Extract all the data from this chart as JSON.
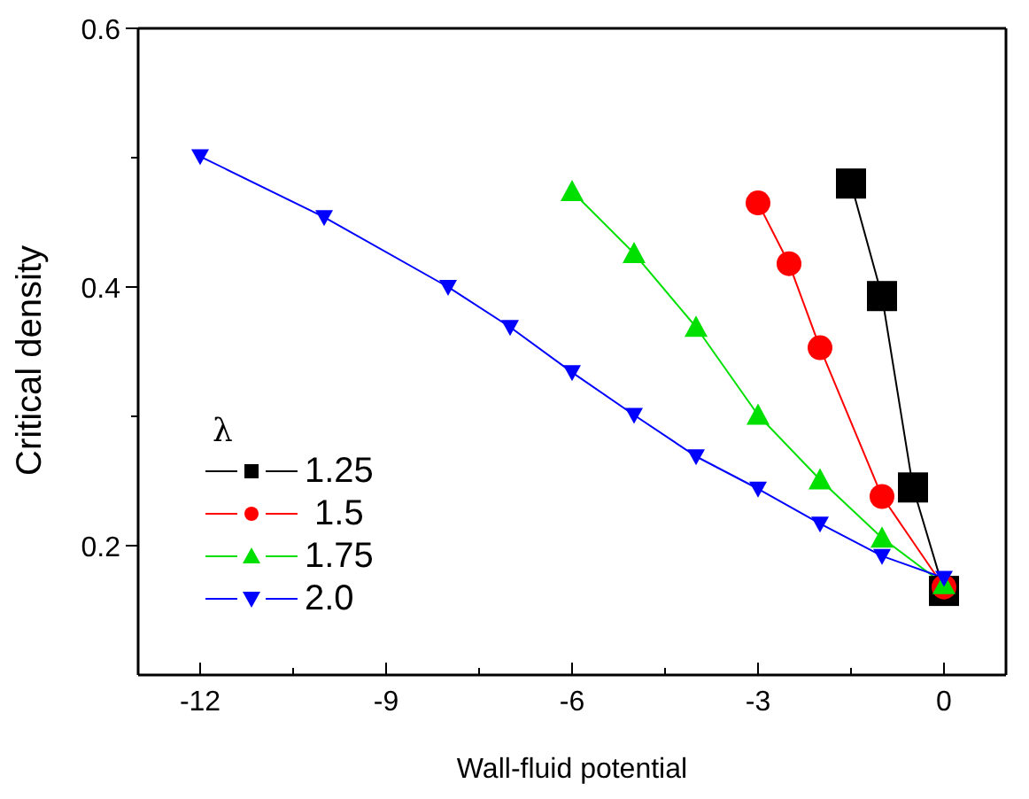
{
  "chart_data": {
    "type": "line",
    "xlabel": "Wall-fluid potential",
    "ylabel": "Critical density",
    "legend_title": "λ",
    "legend": "left",
    "xlim": [
      -13,
      1
    ],
    "xticks": [
      -12,
      {
        "value": -10.5,
        "label": null
      },
      -9,
      {
        "value": -7.5,
        "label": null
      },
      -6,
      {
        "value": -4.5,
        "label": null
      },
      -3,
      {
        "value": -1.5,
        "label": null
      },
      0
    ],
    "ylim": [
      0.1,
      0.6
    ],
    "yticks": [
      0.2,
      {
        "value": 0.3,
        "label": null
      },
      0.4,
      {
        "value": 0.5,
        "label": null
      },
      0.6
    ],
    "series": [
      {
        "name": "1.25",
        "color": "#000000",
        "marker": "square",
        "x": [
          -1.5,
          -1,
          -0.5,
          0
        ],
        "values": [
          0.48,
          0.393,
          0.245,
          0.165
        ]
      },
      {
        "name": " 1.5",
        "color": "#ff0000",
        "marker": "circle",
        "x": [
          -3,
          -2.5,
          -2,
          -1,
          0
        ],
        "values": [
          0.465,
          0.418,
          0.353,
          0.238,
          0.168
        ]
      },
      {
        "name": "1.75",
        "color": "#00e000",
        "marker": "triangle",
        "x": [
          -6,
          -5,
          -4,
          -3,
          -2,
          -1,
          0
        ],
        "values": [
          0.474,
          0.426,
          0.369,
          0.301,
          0.251,
          0.206,
          0.17
        ]
      },
      {
        "name": "2.0",
        "color": "#0000ff",
        "marker": "triangle-down",
        "x": [
          -12,
          -10,
          -8,
          -7,
          -6,
          -5,
          -4,
          -3,
          -2,
          -1,
          0
        ],
        "values": [
          0.501,
          0.454,
          0.4,
          0.369,
          0.334,
          0.301,
          0.269,
          0.244,
          0.217,
          0.192,
          0.175
        ]
      }
    ]
  }
}
